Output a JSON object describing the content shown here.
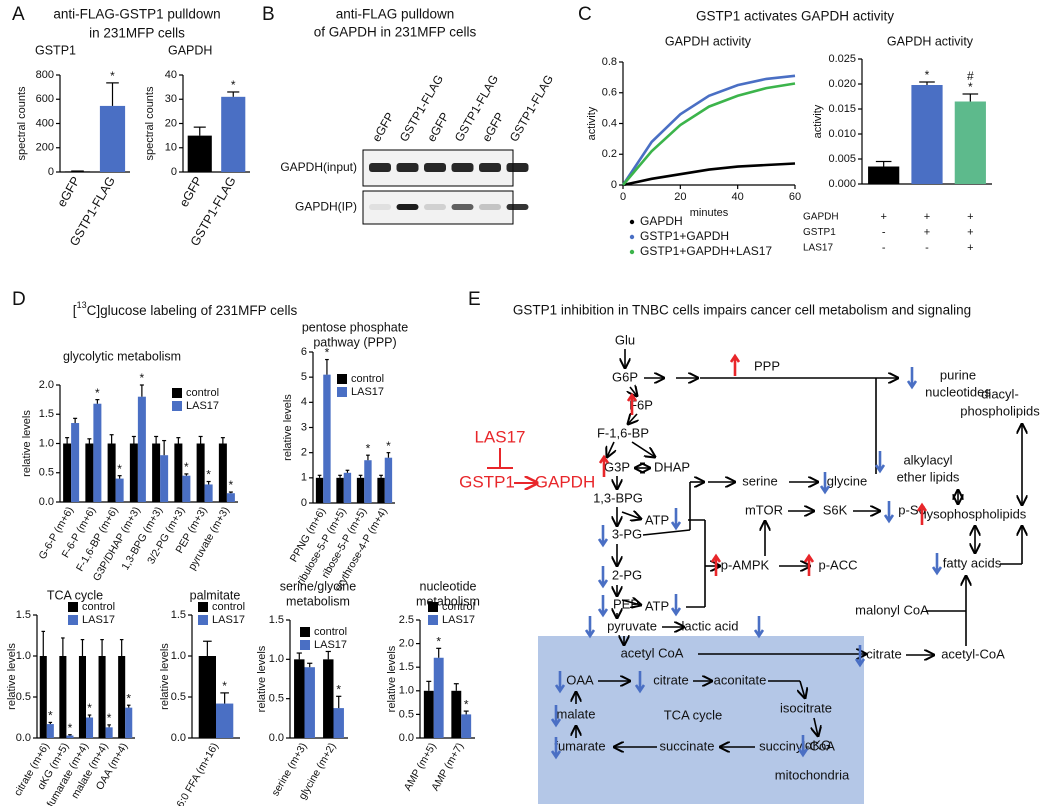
{
  "panel_labels": [
    "A",
    "B",
    "C",
    "D",
    "E"
  ],
  "headings": {
    "A": [
      "anti-FLAG-GSTP1 pulldown",
      "in 231MFP cells"
    ],
    "B": [
      "anti-FLAG pulldown",
      "of GAPDH in 231MFP cells"
    ],
    "C": "GSTP1 activates GAPDH activity",
    "D": [
      "[",
      "13",
      "C]glucose labeling of 231MFP cells"
    ],
    "E": "GSTP1 inhibition in TNBC cells impairs cancer cell metabolism and signaling"
  },
  "chart_data": [
    {
      "type": "bar",
      "title": "GSTP1",
      "ylabel": "spectral counts",
      "categories": [
        "eGFP",
        "GSTP1-FLAG"
      ],
      "bar_colors": [
        "#000000",
        "#4a6fc4"
      ],
      "series": [
        {
          "values": [
            5,
            545
          ],
          "errors": [
            3,
            190
          ],
          "annotations": [
            null,
            [
              "*"
            ]
          ]
        }
      ],
      "ylim": [
        0,
        800
      ],
      "yticks": [
        0,
        200,
        400,
        600,
        800
      ]
    },
    {
      "type": "bar",
      "title": "GAPDH",
      "ylabel": "spectral counts",
      "categories": [
        "eGFP",
        "GSTP1-FLAG"
      ],
      "bar_colors": [
        "#000000",
        "#4a6fc4"
      ],
      "series": [
        {
          "values": [
            15,
            31
          ],
          "errors": [
            3.5,
            2
          ],
          "annotations": [
            null,
            [
              "*"
            ]
          ]
        }
      ],
      "ylim": [
        0,
        40
      ],
      "yticks": [
        0,
        10,
        20,
        30,
        40
      ]
    },
    {
      "type": "line",
      "title": "GAPDH activity",
      "xlabel": "minutes",
      "ylabel": "activity",
      "x": [
        0,
        10,
        20,
        30,
        40,
        50,
        60
      ],
      "series": [
        {
          "name": "GAPDH",
          "color": "#000000",
          "values": [
            0,
            0.04,
            0.07,
            0.1,
            0.12,
            0.13,
            0.14
          ]
        },
        {
          "name": "GSTP1+GAPDH",
          "color": "#4a6fc4",
          "values": [
            0,
            0.28,
            0.46,
            0.58,
            0.65,
            0.69,
            0.71
          ]
        },
        {
          "name": "GSTP1+GAPDH+LAS17",
          "color": "#3cb44b",
          "values": [
            0,
            0.22,
            0.39,
            0.51,
            0.58,
            0.63,
            0.66
          ]
        }
      ],
      "xlim": [
        0,
        60
      ],
      "xticks": [
        0,
        20,
        40,
        60
      ],
      "ylim": [
        0,
        0.8
      ],
      "yticks": [
        0,
        0.2,
        0.4,
        0.6,
        0.8
      ]
    },
    {
      "type": "bar",
      "title": "GAPDH activity",
      "ylabel": "activity",
      "bar_colors": [
        "#000000",
        "#4a6fc4",
        "#5dba8c"
      ],
      "series": [
        {
          "values": [
            0.0035,
            0.0198,
            0.0165
          ],
          "errors": [
            0.001,
            0.0006,
            0.0015
          ],
          "annotations": [
            null,
            [
              "*"
            ],
            [
              "*",
              "#"
            ]
          ]
        }
      ],
      "ylim": [
        0,
        0.025
      ],
      "yticks": [
        {
          "value": 0,
          "label": "0.000"
        },
        {
          "value": 0.005,
          "label": "0.005"
        },
        {
          "value": 0.01,
          "label": "0.010"
        },
        {
          "value": 0.015,
          "label": "0.015"
        },
        {
          "value": 0.02,
          "label": "0.020"
        },
        {
          "value": 0.025,
          "label": "0.025"
        }
      ],
      "table": {
        "rows": [
          {
            "label": "GAPDH",
            "cells": [
              "+",
              "+",
              "+"
            ]
          },
          {
            "label": "GSTP1",
            "cells": [
              "-",
              "+",
              "+"
            ]
          },
          {
            "label": "LAS17",
            "cells": [
              "-",
              "-",
              "+"
            ]
          }
        ]
      }
    },
    {
      "type": "bar",
      "title": "glycolytic metabolism",
      "ylabel": "relative levels",
      "categories": [
        "G-6-P (m+6)",
        "F-6-P (m+6)",
        "F-1,6-BP (m+6)",
        "G3P/DHAP (m+3)",
        "1,3-BPG (m+3)",
        "3/2-PG (m+3)",
        "PEP (m+3)",
        "pyruvate (m+3)"
      ],
      "series": [
        {
          "name": "control",
          "color": "#000000",
          "values": [
            1,
            1,
            1,
            1,
            1,
            1,
            1,
            1
          ],
          "errors": [
            0.1,
            0.08,
            0.15,
            0.12,
            0.12,
            0.1,
            0.12,
            0.1
          ]
        },
        {
          "name": "LAS17",
          "color": "#4a6fc4",
          "values": [
            1.35,
            1.68,
            0.4,
            1.8,
            0.8,
            0.45,
            0.3,
            0.15
          ],
          "errors": [
            0.08,
            0.07,
            0.05,
            0.2,
            0.25,
            0.03,
            0.05,
            0.02
          ],
          "annotations": [
            null,
            [
              "*"
            ],
            [
              "*"
            ],
            [
              "*"
            ],
            null,
            [
              "*"
            ],
            [
              "*"
            ],
            [
              "*"
            ]
          ]
        }
      ],
      "ylim": [
        0,
        2
      ],
      "yticks": [
        {
          "value": 0,
          "label": "0.0"
        },
        0.5,
        {
          "value": 1,
          "label": "1.0"
        },
        1.5,
        {
          "value": 2,
          "label": "2.0"
        }
      ]
    },
    {
      "type": "bar",
      "title_lines": [
        "pentose phosphate",
        "pathway (PPP)"
      ],
      "ylabel": "relative levels",
      "categories": [
        "PPNG (m+6)",
        "ribulose-5-P (m+5)",
        "ribose-5-P (m+5)",
        "erythrose-4-P (m+4)"
      ],
      "series": [
        {
          "name": "control",
          "color": "#000000",
          "values": [
            1,
            1,
            1,
            1
          ],
          "errors": [
            0.1,
            0.1,
            0.1,
            0.1
          ]
        },
        {
          "name": "LAS17",
          "color": "#4a6fc4",
          "values": [
            5.1,
            1.2,
            1.7,
            1.8
          ],
          "errors": [
            0.6,
            0.1,
            0.2,
            0.2
          ],
          "annotations": [
            [
              "*"
            ],
            null,
            [
              "*"
            ],
            [
              "*"
            ]
          ]
        }
      ],
      "ylim": [
        0,
        6
      ],
      "yticks": [
        0,
        1,
        2,
        3,
        4,
        5,
        6
      ]
    },
    {
      "type": "bar",
      "title": "TCA cycle",
      "ylabel": "relative levels",
      "categories": [
        "citrate (m+6)",
        "αKG (m+5)",
        "fumarate (m+4)",
        "malate (m+4)",
        "OAA (m+4)"
      ],
      "series": [
        {
          "name": "control",
          "color": "#000000",
          "values": [
            1,
            1,
            1,
            1,
            1
          ],
          "errors": [
            0.3,
            0.22,
            0.2,
            0.2,
            0.2
          ]
        },
        {
          "name": "LAS17",
          "color": "#4a6fc4",
          "values": [
            0.17,
            0.03,
            0.25,
            0.13,
            0.37
          ],
          "errors": [
            0.02,
            0.01,
            0.03,
            0.03,
            0.03
          ],
          "annotations": [
            [
              "*"
            ],
            [
              "*"
            ],
            [
              "*"
            ],
            [
              "*"
            ],
            [
              "*"
            ]
          ]
        }
      ],
      "ylim": [
        0,
        1.5
      ],
      "yticks": [
        {
          "value": 0,
          "label": "0.0"
        },
        0.5,
        {
          "value": 1,
          "label": "1.0"
        },
        1.5
      ]
    },
    {
      "type": "bar",
      "title": "palmitate",
      "ylabel": "relative levels",
      "categories": [
        "C16:0 FFA (m+16)"
      ],
      "series": [
        {
          "name": "control",
          "color": "#000000",
          "values": [
            1
          ],
          "errors": [
            0.18
          ]
        },
        {
          "name": "LAS17",
          "color": "#4a6fc4",
          "values": [
            0.42
          ],
          "errors": [
            0.13
          ],
          "annotations": [
            [
              "*"
            ]
          ]
        }
      ],
      "ylim": [
        0,
        1.5
      ],
      "yticks": [
        {
          "value": 0,
          "label": "0.0"
        },
        0.5,
        {
          "value": 1,
          "label": "1.0"
        },
        1.5
      ]
    },
    {
      "type": "bar",
      "title_lines": [
        "serine/glycine",
        "metabolism"
      ],
      "ylabel": "relative levels",
      "categories": [
        "serine (m+3)",
        "glycine (m+2)"
      ],
      "series": [
        {
          "name": "control",
          "color": "#000000",
          "values": [
            1,
            1
          ],
          "errors": [
            0.08,
            0.1
          ]
        },
        {
          "name": "LAS17",
          "color": "#4a6fc4",
          "values": [
            0.9,
            0.38
          ],
          "errors": [
            0.05,
            0.15
          ],
          "annotations": [
            null,
            [
              "*"
            ]
          ]
        }
      ],
      "ylim": [
        0,
        1.5
      ],
      "yticks": [
        {
          "value": 0,
          "label": "0.0"
        },
        0.5,
        {
          "value": 1,
          "label": "1.0"
        },
        1.5
      ]
    },
    {
      "type": "bar",
      "title_lines": [
        "nucleotide",
        "metabolism"
      ],
      "ylabel": "relative levels",
      "categories": [
        "AMP (m+5)",
        "AMP (m+7)"
      ],
      "series": [
        {
          "name": "control",
          "color": "#000000",
          "values": [
            1,
            1
          ],
          "errors": [
            0.2,
            0.15
          ]
        },
        {
          "name": "LAS17",
          "color": "#4a6fc4",
          "values": [
            1.7,
            0.5
          ],
          "errors": [
            0.2,
            0.07
          ],
          "annotations": [
            [
              "*"
            ],
            [
              "*"
            ]
          ]
        }
      ],
      "ylim": [
        0,
        2.5
      ],
      "yticks": [
        {
          "value": 0,
          "label": "0.0"
        },
        0.5,
        {
          "value": 1,
          "label": "1.0"
        },
        1.5,
        {
          "value": 2,
          "label": "2.0"
        },
        2.5
      ]
    }
  ],
  "blot": {
    "lanes": [
      "eGFP",
      "GSTP1-FLAG",
      "eGFP",
      "GSTP1-FLAG",
      "eGFP",
      "GSTP1-FLAG"
    ],
    "rows": [
      "GAPDH(input)",
      "GAPDH(IP)"
    ]
  },
  "diagram": {
    "nodes": [
      {
        "label": "Glu"
      },
      {
        "label": "G6P"
      },
      {
        "label": "PPP"
      },
      {
        "lines": [
          "purine",
          "nucleotides"
        ]
      },
      {
        "label": "F6P"
      },
      {
        "label": "F-1,6-BP"
      },
      {
        "label": "G3P"
      },
      {
        "label": "DHAP"
      },
      {
        "label": "LAS17",
        "color": "#e8262a"
      },
      {
        "label": "GSTP1",
        "color": "#e8262a"
      },
      {
        "label": "GAPDH",
        "color": "#e8262a"
      },
      {
        "label": "1,3-BPG"
      },
      {
        "label": "serine"
      },
      {
        "label": "glycine"
      },
      {
        "label": "ATP"
      },
      {
        "label": "mTOR"
      },
      {
        "label": "S6K"
      },
      {
        "label": "p-S6"
      },
      {
        "label": "3-PG"
      },
      {
        "label": "2-PG"
      },
      {
        "label": "p-AMPK"
      },
      {
        "label": "p-ACC"
      },
      {
        "label": "PEP"
      },
      {
        "label": "ATP"
      },
      {
        "label": "pyruvate"
      },
      {
        "label": "lactic acid"
      },
      {
        "label": "acetyl CoA"
      },
      {
        "label": "OAA"
      },
      {
        "label": "citrate"
      },
      {
        "label": "aconitate"
      },
      {
        "label": "isocitrate"
      },
      {
        "label": "TCA cycle"
      },
      {
        "label": "malate"
      },
      {
        "label": "αKG"
      },
      {
        "label": "fumarate"
      },
      {
        "label": "succinate"
      },
      {
        "label": "succinyl-CoA"
      },
      {
        "label": "mitochondria"
      },
      {
        "label": "citrate"
      },
      {
        "label": "acetyl-CoA"
      },
      {
        "label": "malonyl CoA"
      },
      {
        "label": "fatty acids"
      },
      {
        "label": "lysophospholipids"
      },
      {
        "lines": [
          "alkylacyl",
          "ether lipids"
        ]
      },
      {
        "lines": [
          "diacyl-",
          "phospholipids"
        ]
      }
    ]
  }
}
